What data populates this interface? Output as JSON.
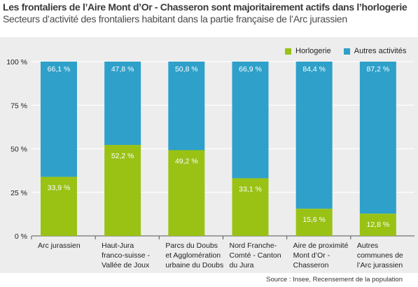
{
  "title": "Les frontaliers de l’Aire Mont d’Or - Chasseron sont majoritairement actifs dans l’horlogerie",
  "subtitle": "Secteurs d’activité des frontaliers habitant dans la partie française de l’Arc jurassien",
  "source": "Source : Insee, Recensement de la population",
  "colors": {
    "horlogerie": "#99c215",
    "autres": "#2ea0c9",
    "background": "#ededed"
  },
  "chart_data": {
    "type": "bar",
    "stacked": true,
    "title": "Les frontaliers de l’Aire Mont d’Or - Chasseron sont majoritairement actifs dans l’horlogerie",
    "subtitle": "Secteurs d’activité des frontaliers habitant dans la partie française de l’Arc jurassien",
    "categories": [
      [
        "Arc jurassien"
      ],
      [
        "Haut-Jura",
        "franco-suisse -",
        "Vallée de Joux"
      ],
      [
        "Parcs du Doubs",
        "et Agglomération",
        "urbaine du Doubs"
      ],
      [
        "Nord Franche-",
        "Comté - Canton",
        "du Jura"
      ],
      [
        "Aire de proximité",
        " Mont d’Or -",
        "Chasseron"
      ],
      [
        "Autres",
        "communes de",
        "l’Arc jurassien"
      ]
    ],
    "series": [
      {
        "name": "Horlogerie",
        "values": [
          33.9,
          52.2,
          49.2,
          33.1,
          15.6,
          12.8
        ],
        "labels": [
          "33,9 %",
          "52,2 %",
          "49,2 %",
          "33,1 %",
          "15,6 %",
          "12,8 %"
        ]
      },
      {
        "name": "Autres activités",
        "values": [
          66.1,
          47.8,
          50.8,
          66.9,
          84.4,
          87.2
        ],
        "labels": [
          "66,1 %",
          "47,8 %",
          "50,8 %",
          "66,9 %",
          "84,4 %",
          "87,2 %"
        ]
      }
    ],
    "yticks": [
      "0 %",
      "25 %",
      "50 %",
      "75 %",
      "100 %"
    ],
    "ylim": [
      0,
      100
    ],
    "grid": true,
    "legend": "top-right"
  }
}
